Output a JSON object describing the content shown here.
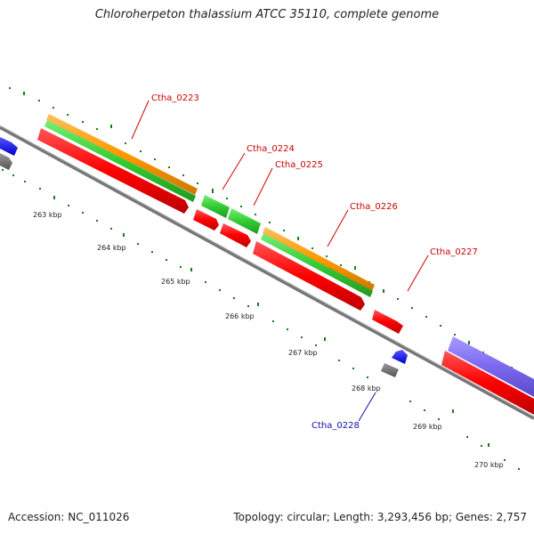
{
  "title": "Chloroherpeton thalassium ATCC 35110, complete genome",
  "accession_text": "Accession: NC_011026",
  "summary_text": "Topology: circular; Length: 3,293,456 bp; Genes: 2,757",
  "scale_labels": [
    "263 kbp",
    "264 kbp",
    "265 kbp",
    "266 kbp",
    "267 kbp",
    "268 kbp",
    "269 kbp",
    "270 kbp"
  ],
  "gene_labels": [
    {
      "text": "Ctha_0223",
      "color": "#cc0000"
    },
    {
      "text": "Ctha_0224",
      "color": "#cc0000"
    },
    {
      "text": "Ctha_0225",
      "color": "#cc0000"
    },
    {
      "text": "Ctha_0226",
      "color": "#cc0000"
    },
    {
      "text": "Ctha_0227",
      "color": "#cc0000"
    },
    {
      "text": "Ctha_0228",
      "color": "#1010aa"
    }
  ],
  "colors": {
    "cds": "#ff0000",
    "gene_green": "#33cc33",
    "gene_orange": "#ff9900",
    "trna_blue": "#0000ff",
    "gray": "#777777",
    "purple": "#7b68ee",
    "tick_green": "#1a7a1a",
    "backbone": "#888888"
  }
}
